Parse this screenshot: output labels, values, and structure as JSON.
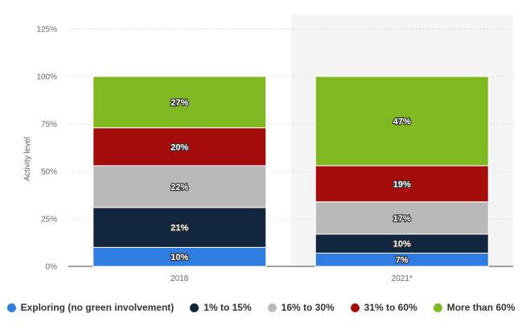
{
  "chart_data": {
    "type": "bar",
    "stacked": true,
    "categories": [
      "2018",
      "2021*"
    ],
    "ylabel": "Activity level",
    "ylim": [
      0,
      125
    ],
    "yticks": [
      "0%",
      "25%",
      "50%",
      "75%",
      "100%",
      "125%"
    ],
    "ytick_values": [
      0,
      25,
      50,
      75,
      100,
      125
    ],
    "grid": true,
    "legend_position": "bottom",
    "shaded_category": "2021*",
    "series": [
      {
        "name": "Exploring (no green involvement)",
        "color": "#2f7de1",
        "values": [
          10,
          7
        ],
        "labels": [
          "10%",
          "7%"
        ]
      },
      {
        "name": "1% to 15%",
        "color": "#12263f",
        "values": [
          21,
          10
        ],
        "labels": [
          "21%",
          "10%"
        ]
      },
      {
        "name": "16% to 30%",
        "color": "#b9b9b9",
        "values": [
          22,
          17
        ],
        "labels": [
          "22%",
          "17%"
        ]
      },
      {
        "name": "31% to 60%",
        "color": "#a50d0d",
        "values": [
          20,
          19
        ],
        "labels": [
          "20%",
          "19%"
        ]
      },
      {
        "name": "More than 60%",
        "color": "#80b821",
        "values": [
          27,
          47
        ],
        "labels": [
          "27%",
          "47%"
        ]
      }
    ]
  }
}
